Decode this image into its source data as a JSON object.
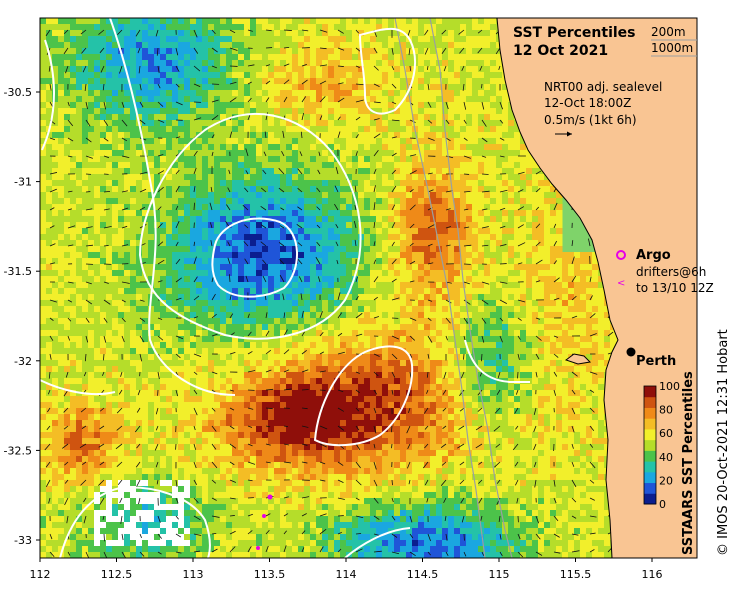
{
  "title": "SST Percentiles",
  "date": "12 Oct 2021",
  "depth_legend": [
    "200m",
    "1000m"
  ],
  "current_info": {
    "line1": "NRT00 adj. sealevel",
    "line2": "12-Oct 18:00Z",
    "line3": "0.5m/s (1kt 6h)"
  },
  "argo_label": "Argo",
  "drifters": {
    "line1": "drifters@6h",
    "line2": "to 13/10 12Z"
  },
  "city": "Perth",
  "colorbar": {
    "title": "SSTAARS SST Percentiles",
    "ticks": [
      "100",
      "80",
      "60",
      "40",
      "20",
      "0"
    ],
    "colors": [
      "#0b1e8f",
      "#1f55d8",
      "#1aa7e0",
      "#24c2a8",
      "#4cc34a",
      "#b5dd2a",
      "#f2ef2b",
      "#f4bd25",
      "#ef8a18",
      "#cf5410",
      "#8f0f0a"
    ]
  },
  "credit": "© IMOS 20-Oct-2021 12:31 Hobart",
  "axes": {
    "x_ticks": [
      "112",
      "112.5",
      "113",
      "113.5",
      "114",
      "114.5",
      "115",
      "115.5",
      "116"
    ],
    "y_ticks": [
      "-30.5",
      "-31",
      "-31.5",
      "-32",
      "-32.5",
      "-33"
    ]
  },
  "colors": {
    "land": "#f9c593",
    "coast": "#000000",
    "contour": "#ffffff",
    "argo": "#e600e6"
  }
}
